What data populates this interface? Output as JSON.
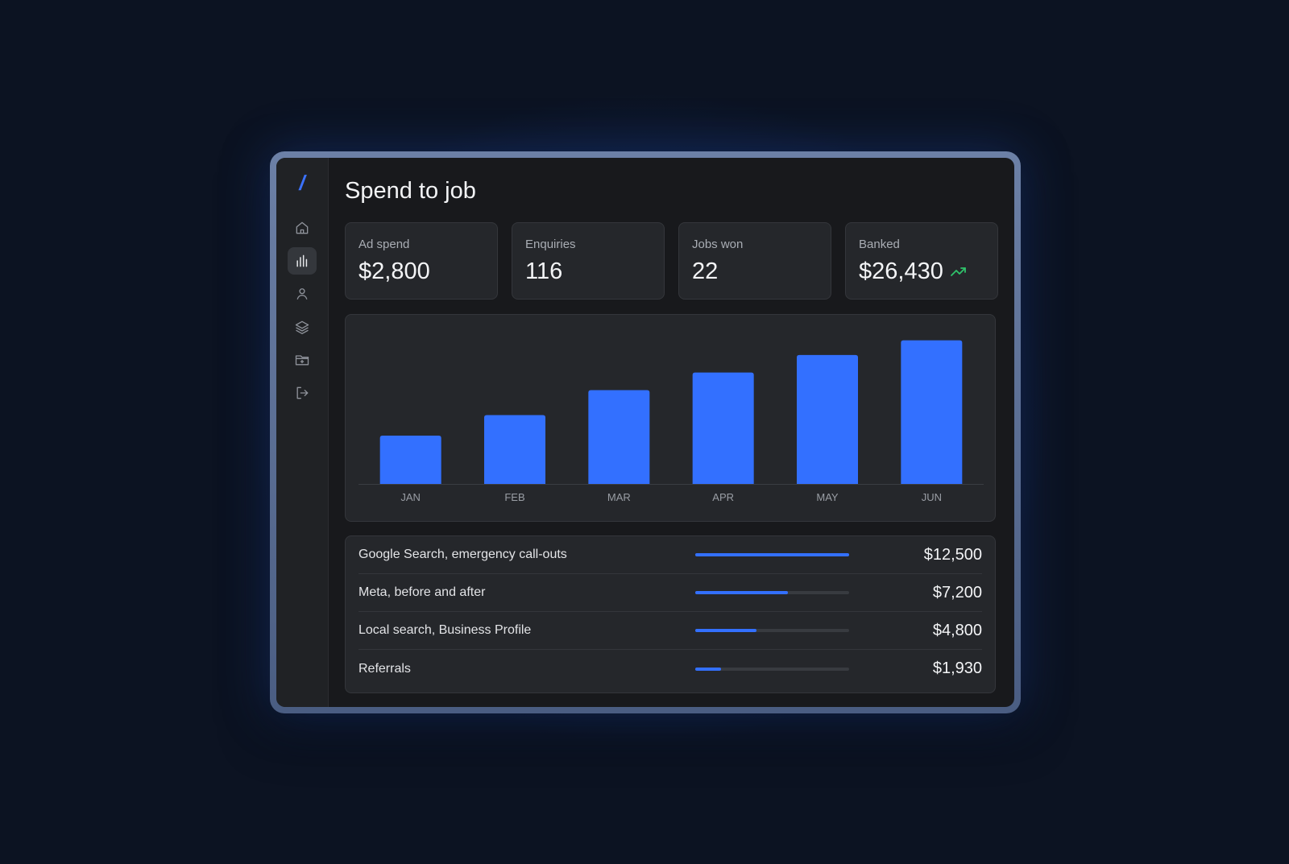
{
  "app": {
    "page_title": "Spend to job",
    "logo": "/"
  },
  "sidebar": {
    "items": [
      {
        "icon": "home-icon",
        "active": false
      },
      {
        "icon": "bar-chart-icon",
        "active": true
      },
      {
        "icon": "user-icon",
        "active": false
      },
      {
        "icon": "layers-icon",
        "active": false
      },
      {
        "icon": "folder-icon",
        "active": false
      },
      {
        "icon": "logout-icon",
        "active": false
      }
    ]
  },
  "kpis": [
    {
      "label": "Ad spend",
      "value": "$2,800"
    },
    {
      "label": "Enquiries",
      "value": "116"
    },
    {
      "label": "Jobs won",
      "value": "22"
    },
    {
      "label": "Banked",
      "value": "$26,430",
      "trend": "up"
    }
  ],
  "colors": {
    "accent": "#3370ff",
    "trend_up": "#2fc36b"
  },
  "chart_data": {
    "type": "bar",
    "categories": [
      "JAN",
      "FEB",
      "MAR",
      "APR",
      "MAY",
      "JUN"
    ],
    "values": [
      33,
      47,
      64,
      76,
      88,
      98
    ],
    "ylim": [
      0,
      100
    ],
    "grid": false,
    "legend": "none"
  },
  "channels": [
    {
      "label": "Google Search, emergency call-outs",
      "amount": "$12,500",
      "share": 1.0
    },
    {
      "label": "Meta, before and after",
      "amount": "$7,200",
      "share": 0.6
    },
    {
      "label": "Local search, Business Profile",
      "amount": "$4,800",
      "share": 0.4
    },
    {
      "label": "Referrals",
      "amount": "$1,930",
      "share": 0.17
    }
  ]
}
